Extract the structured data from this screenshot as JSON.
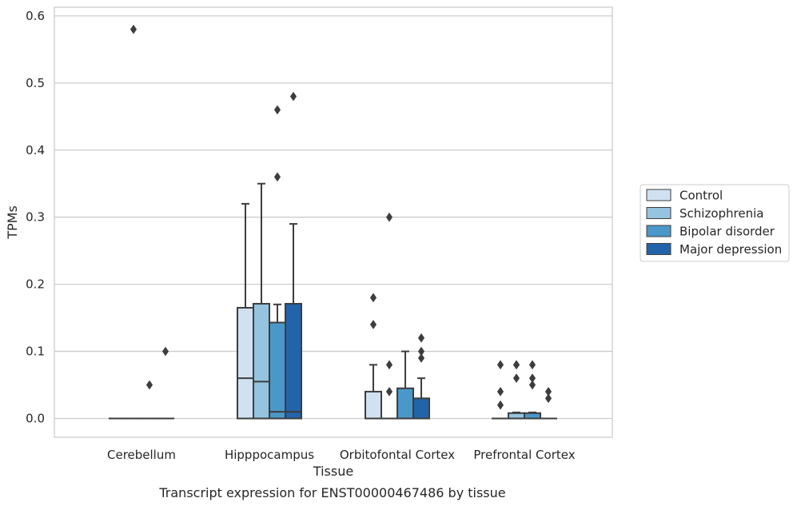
{
  "chart_data": {
    "type": "box",
    "xlabel": "Tissue",
    "ylabel": "TPMs",
    "caption": "Transcript expression for ENST00000467486 by tissue",
    "ylim": [
      -0.028,
      0.613
    ],
    "yticks": [
      "0.0",
      "0.1",
      "0.2",
      "0.3",
      "0.4",
      "0.5",
      "0.6"
    ],
    "ytick_values": [
      0,
      0.1,
      0.2,
      0.3,
      0.4,
      0.5,
      0.6
    ],
    "grid": "horizontal",
    "legend_position": "right",
    "categories": [
      "Cerebellum",
      "Hipppocampus",
      "Orbitofontal Cortex",
      "Prefrontal Cortex"
    ],
    "series": [
      {
        "name": "Control",
        "color": "#d0e1f2",
        "boxes": [
          {
            "q1": 0,
            "median": 0,
            "q3": 0,
            "whisker_low": 0,
            "whisker_high": 0,
            "outliers": []
          },
          {
            "q1": 0,
            "median": 0.06,
            "q3": 0.165,
            "whisker_low": 0,
            "whisker_high": 0.32,
            "outliers": []
          },
          {
            "q1": 0,
            "median": 0,
            "q3": 0.04,
            "whisker_low": 0,
            "whisker_high": 0.08,
            "outliers": [
              0.14,
              0.18
            ]
          },
          {
            "q1": 0,
            "median": 0,
            "q3": 0,
            "whisker_low": 0,
            "whisker_high": 0,
            "outliers": [
              0.02,
              0.04,
              0.08
            ]
          }
        ]
      },
      {
        "name": "Schizophrenia",
        "color": "#94c4df",
        "boxes": [
          {
            "q1": 0,
            "median": 0,
            "q3": 0,
            "whisker_low": 0,
            "whisker_high": 0,
            "outliers": [
              0.58
            ]
          },
          {
            "q1": 0,
            "median": 0.055,
            "q3": 0.171,
            "whisker_low": 0,
            "whisker_high": 0.35,
            "outliers": []
          },
          {
            "q1": 0,
            "median": 0,
            "q3": 0,
            "whisker_low": 0,
            "whisker_high": 0,
            "outliers": [
              0.04,
              0.08,
              0.3
            ]
          },
          {
            "q1": 0,
            "median": 0,
            "q3": 0.008,
            "whisker_low": 0,
            "whisker_high": 0.009,
            "outliers": [
              0.06,
              0.08,
              0.08
            ]
          }
        ]
      },
      {
        "name": "Bipolar disorder",
        "color": "#4a98c9",
        "boxes": [
          {
            "q1": 0,
            "median": 0,
            "q3": 0,
            "whisker_low": 0,
            "whisker_high": 0,
            "outliers": [
              0.05
            ]
          },
          {
            "q1": 0,
            "median": 0.01,
            "q3": 0.143,
            "whisker_low": 0,
            "whisker_high": 0.17,
            "outliers": [
              0.36,
              0.46
            ]
          },
          {
            "q1": 0,
            "median": 0,
            "q3": 0.045,
            "whisker_low": 0,
            "whisker_high": 0.1,
            "outliers": []
          },
          {
            "q1": 0,
            "median": 0,
            "q3": 0.008,
            "whisker_low": 0,
            "whisker_high": 0.009,
            "outliers": [
              0.05,
              0.06,
              0.08
            ]
          }
        ]
      },
      {
        "name": "Major depression",
        "color": "#2264aa",
        "boxes": [
          {
            "q1": 0,
            "median": 0,
            "q3": 0,
            "whisker_low": 0,
            "whisker_high": 0,
            "outliers": [
              0.1
            ]
          },
          {
            "q1": 0,
            "median": 0.01,
            "q3": 0.171,
            "whisker_low": 0,
            "whisker_high": 0.29,
            "outliers": [
              0.48
            ]
          },
          {
            "q1": 0,
            "median": 0,
            "q3": 0.03,
            "whisker_low": 0,
            "whisker_high": 0.06,
            "outliers": [
              0.09,
              0.1,
              0.12
            ]
          },
          {
            "q1": 0,
            "median": 0,
            "q3": 0,
            "whisker_low": 0,
            "whisker_high": 0,
            "outliers": [
              0.03,
              0.04
            ]
          }
        ]
      }
    ]
  }
}
